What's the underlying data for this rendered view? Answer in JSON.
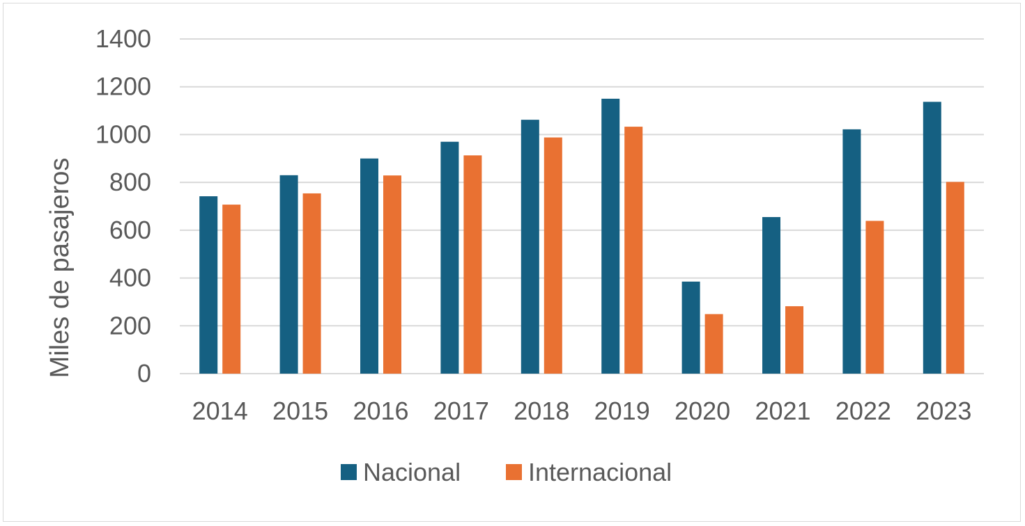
{
  "chart_data": {
    "type": "bar",
    "title": "",
    "xlabel": "",
    "ylabel": "Miles de pasajeros",
    "ylim": [
      0,
      1400
    ],
    "yticks": [
      0,
      200,
      400,
      600,
      800,
      1000,
      1200,
      1400
    ],
    "grid": true,
    "legend_position": "bottom",
    "categories": [
      "2014",
      "2015",
      "2016",
      "2017",
      "2018",
      "2019",
      "2020",
      "2021",
      "2022",
      "2023"
    ],
    "series": [
      {
        "name": "Nacional",
        "color": "#156082",
        "values": [
          742,
          830,
          900,
          970,
          1062,
          1150,
          385,
          655,
          1022,
          1137
        ]
      },
      {
        "name": "Internacional",
        "color": "#E97132",
        "values": [
          707,
          754,
          829,
          913,
          988,
          1033,
          249,
          282,
          639,
          802
        ]
      }
    ]
  }
}
